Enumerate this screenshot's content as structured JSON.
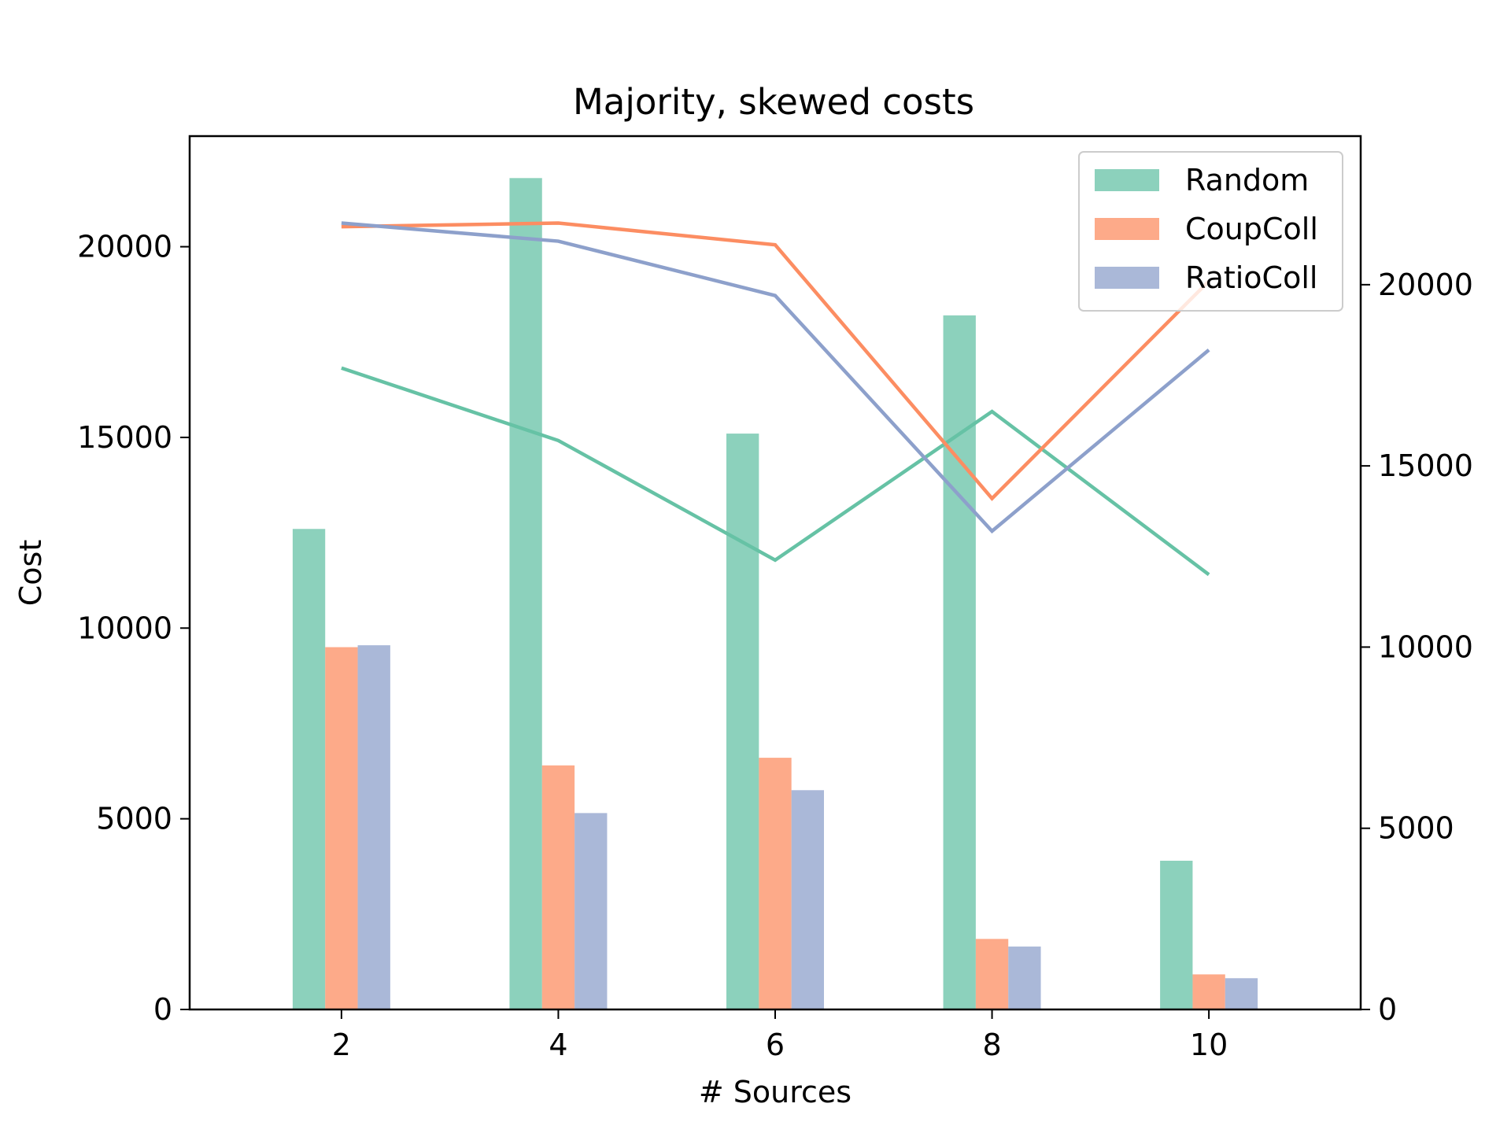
{
  "chart_data": {
    "type": "bar",
    "title": "Majority, skewed costs",
    "xlabel": "# Sources",
    "ylabel": "Cost",
    "xlim": [
      0.6,
      11.4
    ],
    "ylim": [
      0,
      22900
    ],
    "y2lim": [
      0,
      24100
    ],
    "xticks": [
      2,
      4,
      6,
      8,
      10
    ],
    "yticks": [
      0,
      5000,
      10000,
      15000,
      20000
    ],
    "y2ticks": [
      0,
      5000,
      10000,
      15000,
      20000
    ],
    "categories": [
      2,
      4,
      6,
      8,
      10
    ],
    "grid": false,
    "legend_position": "top-right",
    "series": [
      {
        "name": "Random",
        "color": "#66c2a5",
        "bar_values": [
          12600,
          21800,
          15100,
          18200,
          3900
        ]
      },
      {
        "name": "CoupColl",
        "color": "#fc8d62",
        "bar_values": [
          9500,
          6400,
          6600,
          1850,
          920
        ]
      },
      {
        "name": "RatioColl",
        "color": "#8da0cb",
        "bar_values": [
          9550,
          5150,
          5750,
          1650,
          820
        ]
      }
    ],
    "lines": [
      {
        "color": "#66c2a5",
        "values": [
          17700,
          15700,
          12400,
          16500,
          12000
        ]
      },
      {
        "color": "#fc8d62",
        "values": [
          21600,
          21700,
          21100,
          14100,
          20100
        ]
      },
      {
        "color": "#8da0cb",
        "values": [
          21700,
          21200,
          19700,
          13200,
          18200
        ]
      }
    ]
  }
}
